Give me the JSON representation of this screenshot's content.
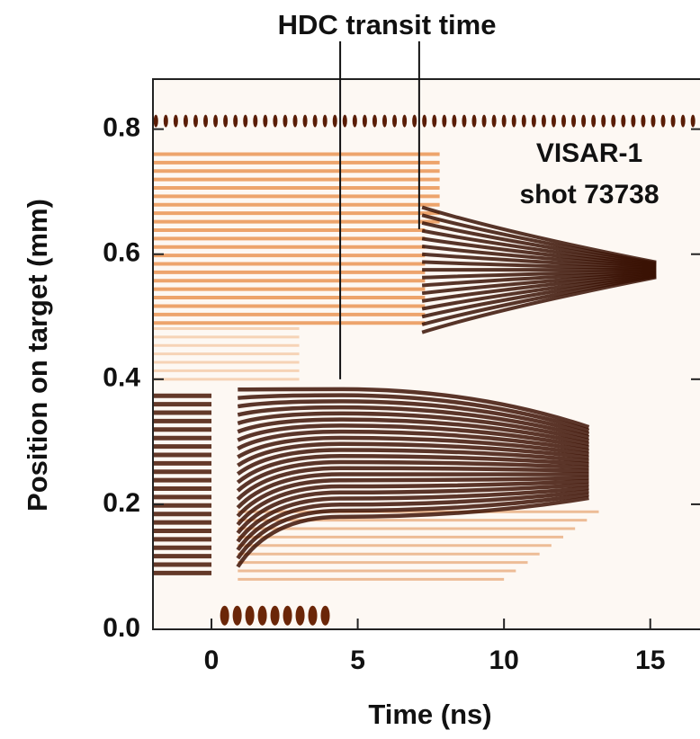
{
  "chart_data": {
    "type": "streak-image",
    "annotation": "HDC transit time",
    "annotation_marks": [
      {
        "x": 4.4,
        "y": 0.4
      },
      {
        "x": 7.1,
        "y": 0.64
      }
    ],
    "label_lines": [
      "VISAR-1",
      "shot 73738"
    ],
    "xlabel": "Time (ns)",
    "ylabel": "Position on target (mm)",
    "xlim": [
      -2,
      16.7
    ],
    "ylim": [
      0,
      0.88
    ],
    "xticks": [
      0,
      5,
      10,
      15
    ],
    "yticks": [
      {
        "value": 0,
        "label": "0.0"
      },
      0.2,
      0.4,
      0.6,
      0.8
    ]
  }
}
